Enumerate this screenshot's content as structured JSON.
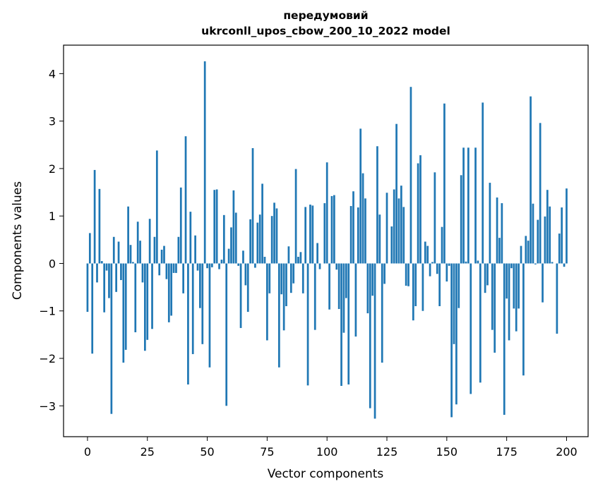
{
  "chart_data": {
    "type": "bar",
    "title_line1": "передумовий",
    "title_line2": "ukrconll_upos_cbow_200_10_2022 model",
    "xlabel": "Vector components",
    "ylabel": "Components values",
    "xlim": [
      -10,
      209
    ],
    "ylim": [
      -3.65,
      4.6
    ],
    "xticks": [
      0,
      25,
      50,
      75,
      100,
      125,
      150,
      175,
      200
    ],
    "yticks": [
      -3,
      -2,
      -1,
      0,
      1,
      2,
      3,
      4
    ],
    "bar_color": "#1f77b4",
    "grid": false,
    "values": [
      -1.02,
      0.64,
      -1.9,
      1.97,
      -0.4,
      1.57,
      0.05,
      -1.03,
      -0.15,
      -0.73,
      -3.17,
      0.56,
      -0.6,
      0.46,
      -0.35,
      -2.09,
      -1.82,
      1.2,
      0.39,
      0.03,
      -1.45,
      0.88,
      0.48,
      -0.4,
      -1.84,
      -1.61,
      0.94,
      -1.38,
      0.56,
      2.38,
      -0.25,
      0.29,
      0.37,
      -0.33,
      -1.24,
      -1.1,
      -0.2,
      -0.2,
      0.56,
      1.6,
      -0.63,
      2.68,
      -2.55,
      1.09,
      -1.91,
      0.59,
      -0.15,
      -0.94,
      -1.7,
      4.26,
      -0.1,
      -2.19,
      -0.08,
      1.55,
      1.56,
      -0.12,
      0.08,
      1.02,
      -3.0,
      0.31,
      0.76,
      1.54,
      1.07,
      -0.05,
      -1.36,
      0.27,
      -0.46,
      -1.02,
      0.93,
      2.43,
      -0.09,
      0.86,
      1.03,
      1.68,
      0.14,
      -1.62,
      -0.63,
      1.0,
      1.28,
      1.16,
      -2.19,
      -0.65,
      -1.41,
      -0.9,
      0.36,
      -0.62,
      -0.42,
      1.99,
      0.14,
      0.24,
      -0.63,
      1.19,
      -2.57,
      1.24,
      1.22,
      -1.4,
      0.43,
      -0.12,
      0.0,
      1.27,
      2.13,
      -0.97,
      1.42,
      1.44,
      -0.13,
      -0.96,
      -2.58,
      -1.46,
      -0.73,
      -2.55,
      1.21,
      1.52,
      -1.54,
      1.18,
      2.84,
      1.9,
      1.37,
      -1.05,
      -3.05,
      -0.68,
      -3.27,
      2.47,
      1.03,
      -2.09,
      -0.43,
      1.49,
      0.0,
      0.78,
      1.56,
      2.94,
      1.37,
      1.64,
      1.19,
      -0.47,
      -0.48,
      3.72,
      -1.2,
      -0.9,
      2.11,
      2.28,
      -1.0,
      0.46,
      0.37,
      -0.27,
      0.03,
      1.92,
      -0.22,
      -0.9,
      0.77,
      3.37,
      -0.38,
      -0.05,
      -3.24,
      -1.7,
      -2.97,
      -0.94,
      1.86,
      2.44,
      0.04,
      2.44,
      -2.75,
      0.0,
      2.44,
      0.06,
      -2.51,
      3.39,
      -0.62,
      -0.46,
      1.7,
      -1.4,
      -1.88,
      1.39,
      0.54,
      1.27,
      -3.19,
      -0.74,
      -1.62,
      -0.1,
      -0.95,
      -1.43,
      -0.95,
      0.37,
      -2.36,
      0.58,
      0.48,
      3.52,
      1.26,
      -0.02,
      0.92,
      2.96,
      -0.82,
      0.99,
      1.55,
      1.2,
      0.03,
      0.0,
      -1.48,
      0.63,
      1.18,
      -0.07,
      1.58
    ]
  }
}
